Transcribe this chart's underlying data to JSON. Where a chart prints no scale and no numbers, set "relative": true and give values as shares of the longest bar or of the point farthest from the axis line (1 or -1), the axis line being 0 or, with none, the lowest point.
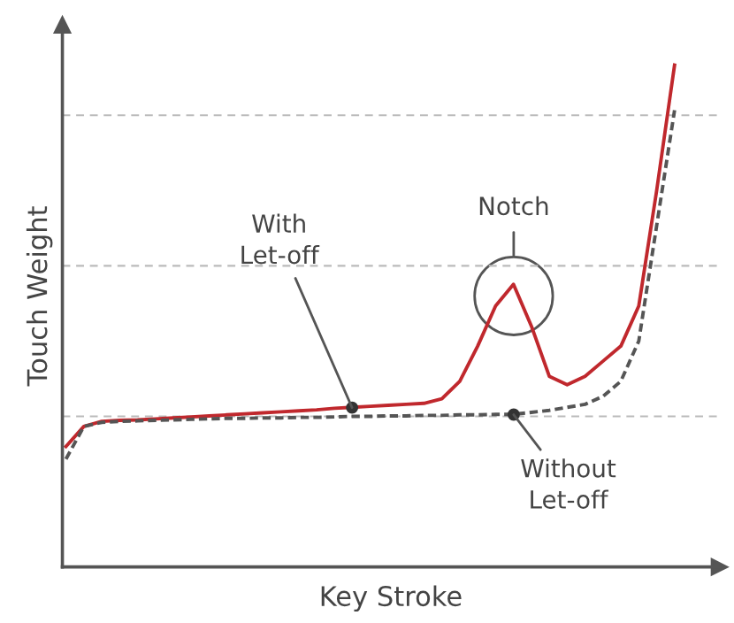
{
  "chart_data": {
    "type": "line",
    "relative": true,
    "xlabel": "Key Stroke",
    "ylabel": "Touch Weight",
    "grid": "y",
    "legend": false,
    "marker": "none",
    "categories": [
      null,
      null,
      null,
      null,
      null,
      null,
      null,
      null,
      null,
      null,
      null,
      null,
      null,
      null,
      null,
      null,
      null,
      null,
      null,
      null,
      null,
      null,
      null,
      null,
      null,
      null,
      null,
      null,
      null,
      null,
      null,
      null,
      null,
      null,
      null
    ],
    "series": [
      {
        "color": "#c0282d",
        "line_style": "solid",
        "values": [
          0.24,
          0.28,
          0.29,
          0.292,
          0.293,
          0.295,
          0.297,
          0.299,
          0.301,
          0.303,
          0.305,
          0.307,
          0.309,
          0.311,
          0.313,
          0.316,
          0.318,
          0.32,
          0.322,
          0.324,
          0.326,
          0.335,
          0.37,
          0.44,
          0.52,
          0.563,
          0.48,
          0.38,
          0.363,
          0.38,
          0.41,
          0.44,
          0.52,
          0.75,
          1
        ]
      },
      {
        "color": "#555555",
        "line_style": "dashed",
        "values": [
          0.215,
          0.28,
          0.288,
          0.29,
          0.291,
          0.292,
          0.293,
          0.294,
          0.295,
          0.296,
          0.296,
          0.297,
          0.297,
          0.298,
          0.298,
          0.299,
          0.3,
          0.3,
          0.301,
          0.301,
          0.302,
          0.302,
          0.303,
          0.303,
          0.304,
          0.304,
          0.308,
          0.312,
          0.318,
          0.324,
          0.34,
          0.37,
          0.45,
          0.68,
          0.91
        ]
      }
    ],
    "annotations": [
      "Notch",
      "With\nLet-off",
      "Without\nLet-off"
    ]
  }
}
